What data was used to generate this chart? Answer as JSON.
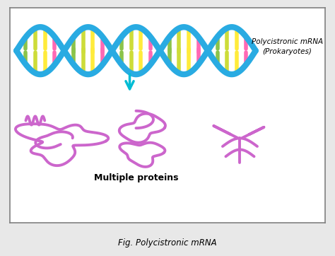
{
  "title": "Fig. Polycistronic mRNA",
  "label_mrna": "Polycistronic mRNA\n(Prokaryotes)",
  "label_proteins": "Multiple proteins",
  "bg_color": "#e8e8e8",
  "box_color": "white",
  "dna_color": "#29abe2",
  "arrow_color": "#00bcd4",
  "protein_color": "#cc66cc",
  "bases_colors": [
    "#8bc34a",
    "#cddc39",
    "#ffeb3b",
    "#ff69b4",
    "#ffb300"
  ],
  "figsize": [
    4.74,
    3.62
  ],
  "dpi": 100
}
